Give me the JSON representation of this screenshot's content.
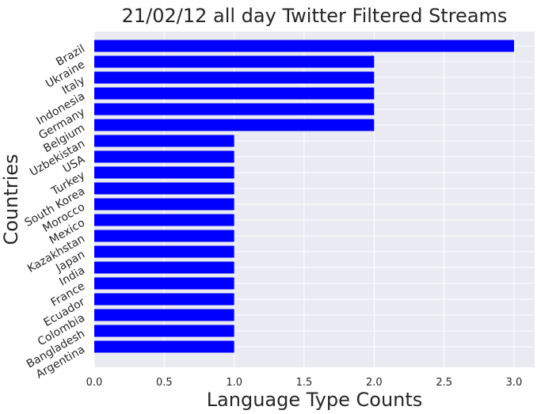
{
  "chart_data": {
    "type": "bar",
    "orientation": "horizontal",
    "title": "21/02/12 all day Twitter Filtered Streams",
    "xlabel": "Language Type Counts",
    "ylabel": "Countries",
    "categories": [
      "Brazil",
      "Ukraine",
      "Italy",
      "Indonesia",
      "Germany",
      "Belgium",
      "Uzbekistan",
      "USA",
      "Turkey",
      "South Korea",
      "Morocco",
      "Mexico",
      "Kazakhstan",
      "Japan",
      "India",
      "France",
      "Ecuador",
      "Colombia",
      "Bangladesh",
      "Argentina"
    ],
    "values": [
      3,
      2,
      2,
      2,
      2,
      2,
      1,
      1,
      1,
      1,
      1,
      1,
      1,
      1,
      1,
      1,
      1,
      1,
      1,
      1
    ],
    "xlim": [
      0,
      3.15
    ],
    "xticks": [
      "0.0",
      "0.5",
      "1.0",
      "1.5",
      "2.0",
      "2.5",
      "3.0"
    ],
    "grid": true,
    "colors": {
      "bar": "#0000ff",
      "background": "#eaeaf2"
    }
  }
}
